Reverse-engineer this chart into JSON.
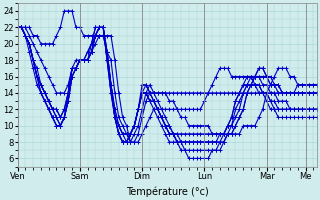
{
  "title": "Température (°c)",
  "background_color": "#d0ecec",
  "grid_color": "#a8d8d8",
  "line_color": "#0000cc",
  "marker": "+",
  "marker_size": 3,
  "marker_lw": 0.7,
  "linewidth": 0.8,
  "ylim": [
    5,
    25
  ],
  "yticks": [
    6,
    8,
    10,
    12,
    14,
    16,
    18,
    20,
    22,
    24
  ],
  "day_labels": [
    "Ven",
    "Sam",
    "Dim",
    "Lun",
    "Mar",
    "Me"
  ],
  "day_positions": [
    0,
    16,
    32,
    48,
    64,
    74
  ],
  "n_points": 78,
  "series": [
    [
      22,
      22,
      22,
      21,
      20,
      19,
      18,
      17,
      16,
      15,
      14,
      14,
      14,
      15,
      17,
      18,
      18,
      18,
      19,
      20,
      21,
      21,
      21,
      19,
      18,
      14,
      11,
      10,
      9,
      8,
      8,
      9,
      11,
      13,
      14,
      14,
      14,
      14,
      14,
      14,
      14,
      14,
      14,
      14,
      14,
      14,
      14,
      14,
      14,
      14,
      14,
      14,
      14,
      14,
      14,
      14,
      14,
      14,
      14,
      14,
      14,
      14,
      14,
      14,
      14,
      14,
      14,
      14,
      14,
      14,
      14,
      14,
      14,
      14,
      14,
      14,
      14,
      14
    ],
    [
      22,
      22,
      21,
      20,
      18,
      16,
      15,
      14,
      13,
      12,
      11,
      10,
      11,
      13,
      16,
      17,
      18,
      18,
      18,
      19,
      20,
      21,
      21,
      19,
      15,
      12,
      10,
      9,
      8,
      8,
      9,
      10,
      12,
      14,
      15,
      14,
      14,
      14,
      14,
      13,
      13,
      12,
      11,
      11,
      10,
      10,
      10,
      10,
      10,
      10,
      9,
      9,
      9,
      9,
      9,
      9,
      9,
      9,
      10,
      10,
      10,
      10,
      11,
      12,
      14,
      15,
      16,
      17,
      17,
      17,
      16,
      16,
      15,
      15,
      15,
      15,
      15,
      15
    ],
    [
      22,
      22,
      21,
      20,
      18,
      16,
      14,
      13,
      12,
      11,
      10,
      10,
      11,
      13,
      16,
      17,
      18,
      18,
      18,
      19,
      21,
      22,
      22,
      19,
      15,
      11,
      9,
      8,
      8,
      9,
      10,
      12,
      14,
      14,
      13,
      13,
      12,
      11,
      10,
      9,
      9,
      8,
      8,
      8,
      8,
      8,
      8,
      8,
      8,
      8,
      8,
      8,
      8,
      8,
      9,
      9,
      10,
      11,
      12,
      14,
      15,
      16,
      17,
      17,
      16,
      16,
      15,
      15,
      14,
      14,
      14,
      14,
      15,
      15,
      15,
      15,
      15,
      15
    ],
    [
      22,
      22,
      21,
      20,
      18,
      16,
      15,
      14,
      13,
      12,
      11,
      10,
      11,
      13,
      17,
      17,
      18,
      18,
      18,
      19,
      21,
      22,
      22,
      19,
      15,
      11,
      9,
      8,
      8,
      9,
      10,
      12,
      14,
      14,
      13,
      13,
      12,
      11,
      10,
      9,
      9,
      8,
      8,
      7,
      7,
      7,
      7,
      7,
      7,
      7,
      7,
      7,
      7,
      8,
      9,
      10,
      11,
      12,
      14,
      15,
      16,
      16,
      16,
      15,
      15,
      14,
      14,
      13,
      13,
      13,
      12,
      12,
      12,
      12,
      12,
      12,
      12,
      12
    ],
    [
      22,
      22,
      21,
      20,
      18,
      16,
      14,
      13,
      12,
      11,
      10,
      10,
      11,
      13,
      16,
      17,
      18,
      18,
      18,
      19,
      21,
      22,
      22,
      18,
      14,
      11,
      9,
      8,
      8,
      9,
      10,
      12,
      14,
      14,
      13,
      12,
      11,
      10,
      9,
      8,
      8,
      8,
      7,
      7,
      6,
      6,
      6,
      6,
      6,
      6,
      7,
      7,
      8,
      9,
      10,
      11,
      13,
      14,
      15,
      16,
      16,
      15,
      15,
      14,
      14,
      13,
      12,
      12,
      12,
      12,
      12,
      12,
      12,
      12,
      12,
      12,
      12,
      12
    ],
    [
      22,
      22,
      21,
      20,
      18,
      16,
      15,
      14,
      13,
      12,
      12,
      11,
      12,
      14,
      17,
      17,
      18,
      18,
      18,
      19,
      21,
      22,
      22,
      18,
      15,
      11,
      10,
      9,
      9,
      9,
      10,
      12,
      15,
      15,
      14,
      13,
      12,
      11,
      10,
      9,
      9,
      9,
      8,
      8,
      8,
      8,
      8,
      8,
      8,
      8,
      8,
      8,
      9,
      9,
      10,
      11,
      13,
      14,
      15,
      15,
      15,
      15,
      15,
      14,
      14,
      13,
      13,
      12,
      12,
      12,
      12,
      12,
      12,
      12,
      12,
      12,
      12,
      12
    ],
    [
      22,
      22,
      21,
      20,
      18,
      17,
      15,
      14,
      13,
      12,
      12,
      11,
      12,
      14,
      17,
      17,
      18,
      18,
      19,
      20,
      22,
      22,
      22,
      19,
      15,
      12,
      10,
      9,
      9,
      9,
      10,
      12,
      14,
      14,
      14,
      13,
      12,
      11,
      10,
      10,
      9,
      9,
      9,
      9,
      9,
      9,
      9,
      9,
      9,
      9,
      9,
      9,
      9,
      9,
      10,
      10,
      12,
      13,
      14,
      15,
      15,
      15,
      14,
      14,
      13,
      12,
      12,
      11,
      11,
      11,
      11,
      11,
      11,
      11,
      11,
      11,
      11,
      11
    ],
    [
      22,
      22,
      21,
      19,
      17,
      15,
      14,
      13,
      12,
      11,
      10,
      10,
      11,
      14,
      17,
      17,
      18,
      18,
      18,
      20,
      22,
      22,
      22,
      18,
      14,
      11,
      9,
      8,
      8,
      9,
      10,
      12,
      14,
      15,
      14,
      14,
      13,
      12,
      11,
      10,
      9,
      8,
      8,
      8,
      8,
      8,
      8,
      8,
      8,
      8,
      8,
      8,
      8,
      8,
      9,
      9,
      10,
      11,
      12,
      14,
      15,
      16,
      17,
      17,
      16,
      15,
      15,
      14,
      14,
      14,
      14,
      14,
      14,
      14,
      14,
      14,
      14,
      14
    ],
    [
      22,
      22,
      22,
      22,
      21,
      21,
      20,
      20,
      20,
      20,
      21,
      22,
      24,
      24,
      24,
      22,
      22,
      21,
      21,
      21,
      21,
      21,
      21,
      21,
      21,
      18,
      14,
      11,
      10,
      8,
      8,
      8,
      9,
      10,
      11,
      12,
      12,
      12,
      12,
      12,
      12,
      12,
      12,
      12,
      12,
      12,
      12,
      12,
      13,
      14,
      15,
      16,
      17,
      17,
      17,
      16,
      16,
      16,
      16,
      16,
      16,
      16,
      16,
      16,
      16,
      15,
      15,
      15,
      14,
      14,
      14,
      14,
      14,
      14,
      14,
      14,
      14,
      14
    ]
  ]
}
